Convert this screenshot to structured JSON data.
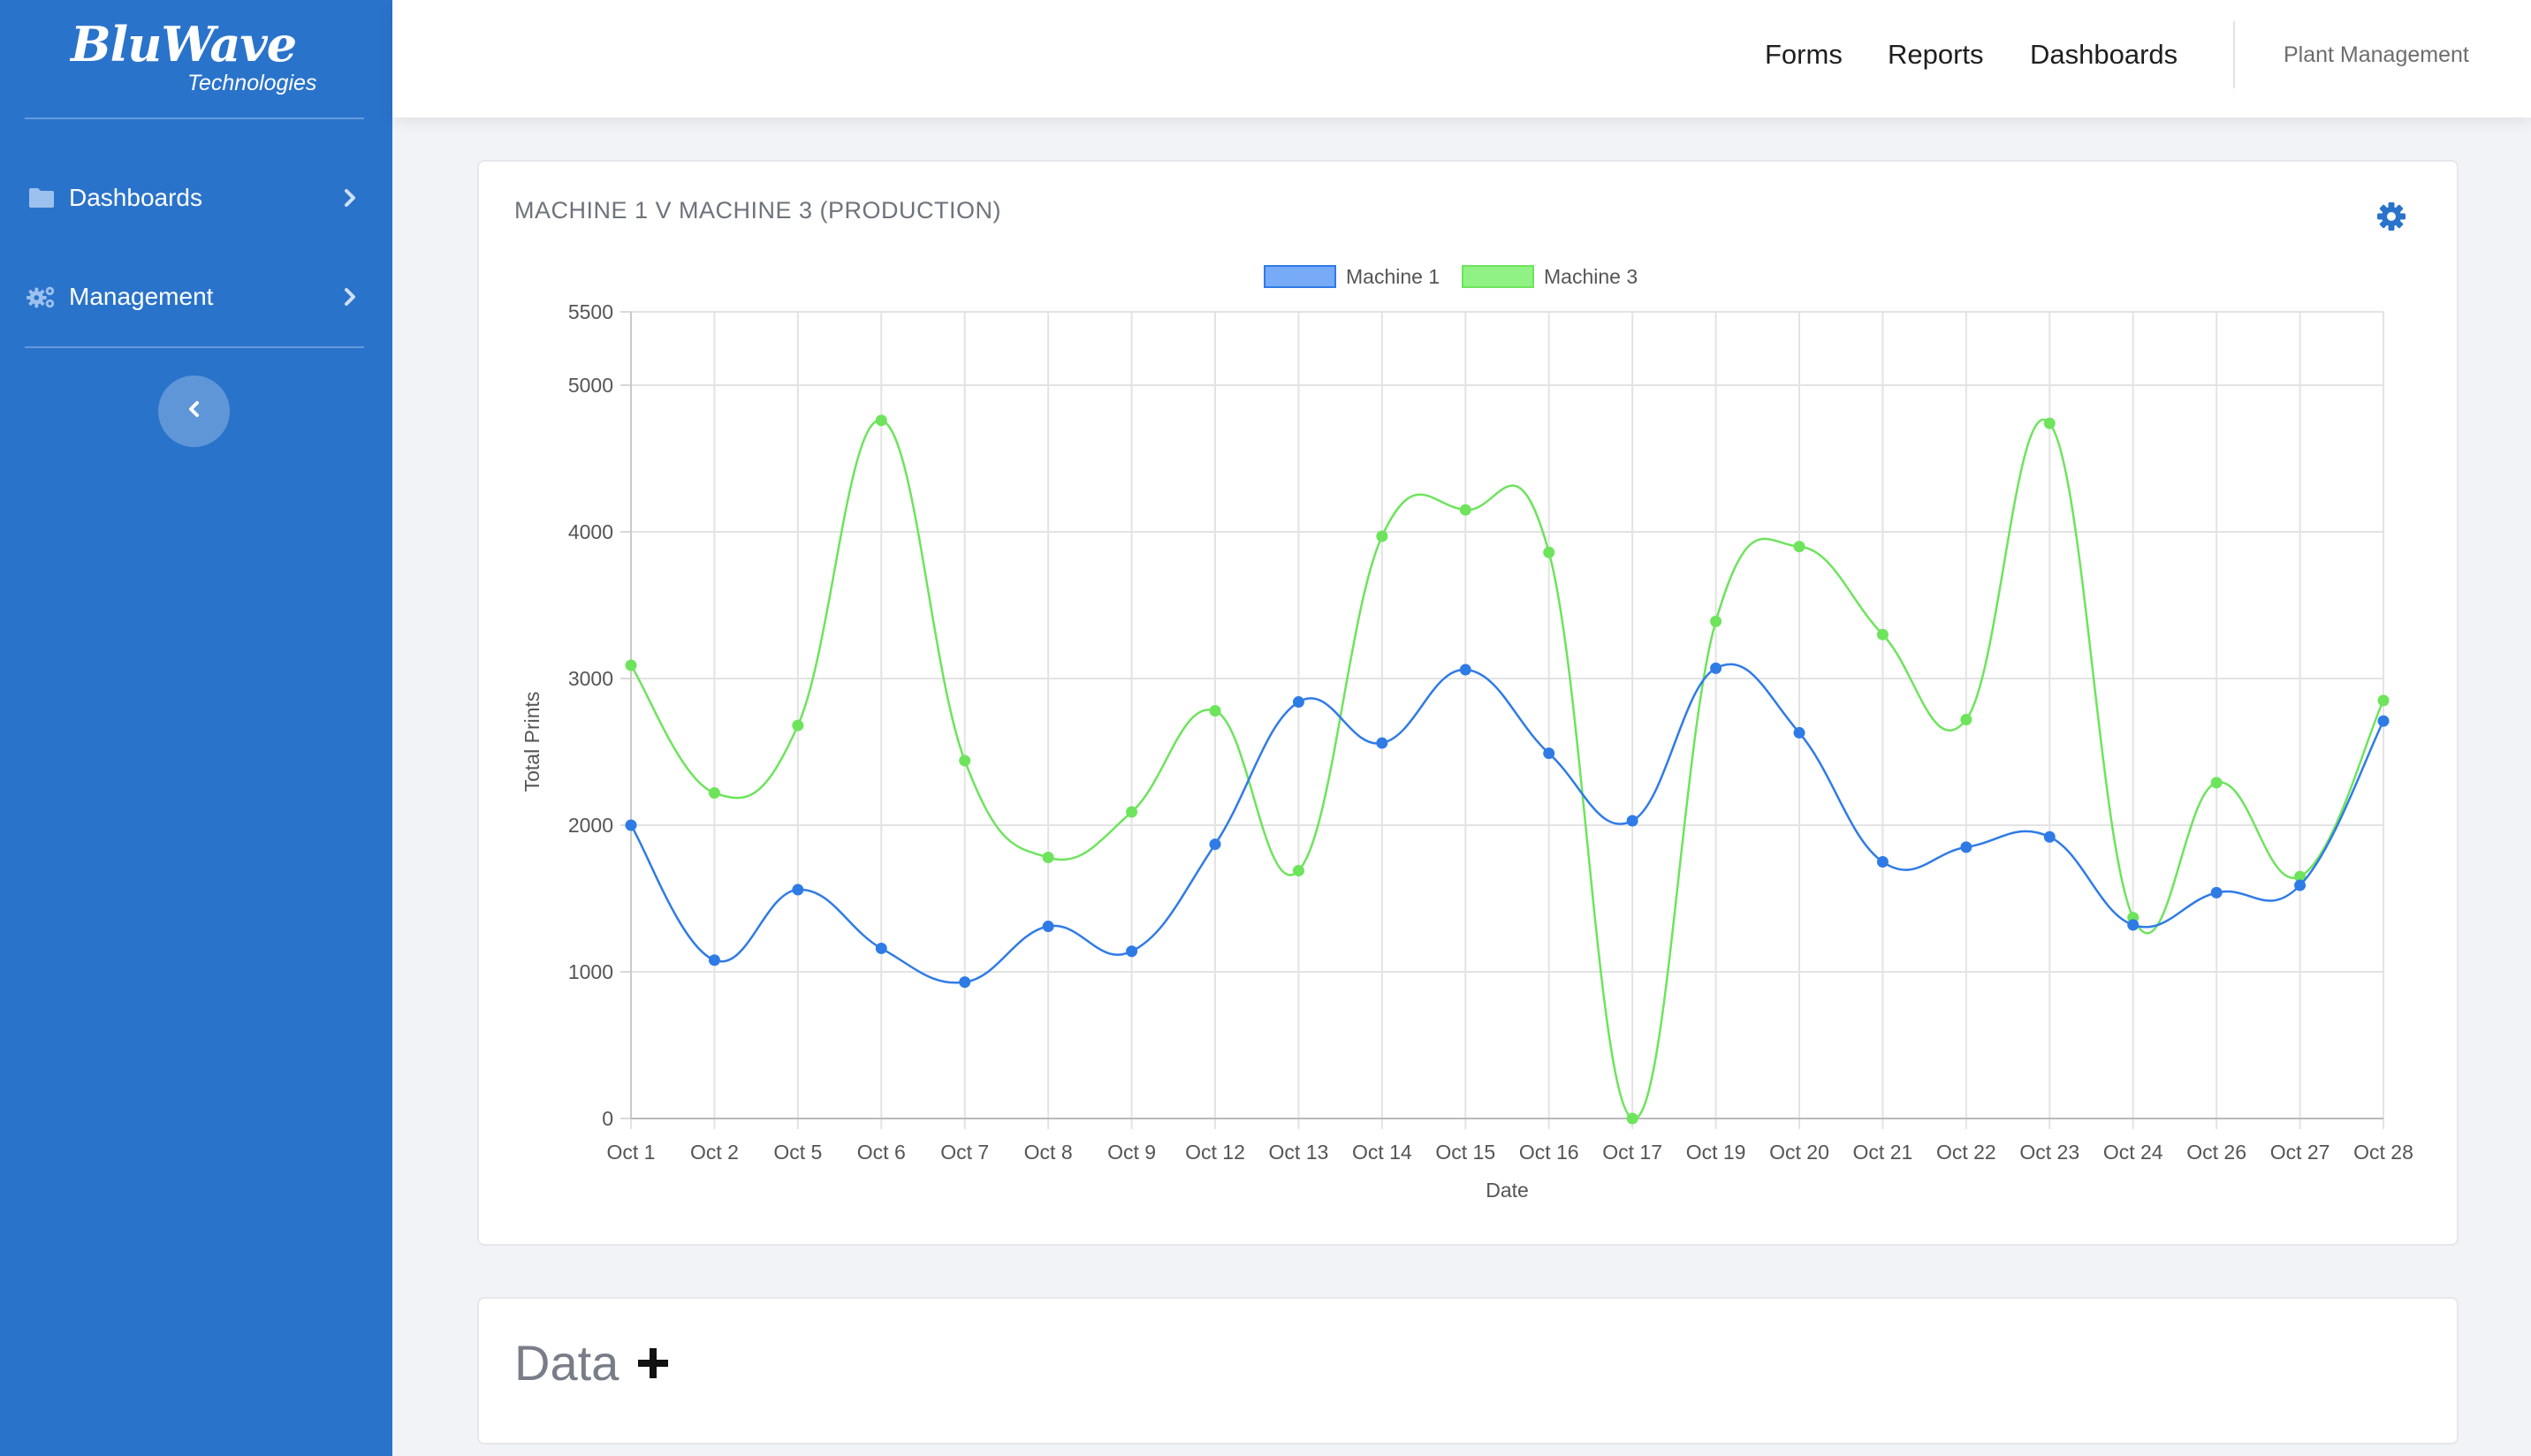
{
  "sidebar": {
    "logo": {
      "main": "BluWave",
      "sub": "Technologies"
    },
    "items": [
      {
        "label": "Dashboards",
        "icon": "folder-icon"
      },
      {
        "label": "Management",
        "icon": "gears-icon"
      }
    ],
    "collapse_icon": "chevron-left-icon"
  },
  "topbar": {
    "links": [
      "Forms",
      "Reports",
      "Dashboards"
    ],
    "plant": "Plant Management"
  },
  "chart_card": {
    "title": "MACHINE 1 V MACHINE 3 (PRODUCTION)",
    "settings_icon": "gear-icon"
  },
  "data_card": {
    "title": "Data",
    "add_icon": "plus-icon"
  },
  "chart_data": {
    "type": "line",
    "xlabel": "Date",
    "ylabel": "Total Prints",
    "ylim": [
      0,
      5500
    ],
    "yticks": [
      0,
      1000,
      2000,
      3000,
      4000,
      5000,
      5500
    ],
    "grid": true,
    "legend": "top-center",
    "categories": [
      "Oct 1",
      "Oct 2",
      "Oct 5",
      "Oct 6",
      "Oct 7",
      "Oct 8",
      "Oct 9",
      "Oct 12",
      "Oct 13",
      "Oct 14",
      "Oct 15",
      "Oct 16",
      "Oct 17",
      "Oct 19",
      "Oct 20",
      "Oct 21",
      "Oct 22",
      "Oct 23",
      "Oct 24",
      "Oct 26",
      "Oct 27",
      "Oct 28"
    ],
    "series": [
      {
        "name": "Machine 1",
        "color": "#2f7be6",
        "fill": "#77aaf7",
        "values": [
          2000,
          1080,
          1560,
          1160,
          930,
          1310,
          1140,
          1870,
          2840,
          2560,
          3060,
          2490,
          2030,
          3070,
          2630,
          1750,
          1850,
          1920,
          1320,
          1540,
          1590,
          2710
        ]
      },
      {
        "name": "Machine 3",
        "color": "#6de45c",
        "fill": "#90f284",
        "values": [
          3090,
          2220,
          2680,
          4760,
          2440,
          1780,
          2090,
          2780,
          1690,
          3970,
          4150,
          3860,
          0,
          3390,
          3900,
          3300,
          2720,
          4740,
          1370,
          2290,
          1650,
          2850
        ]
      }
    ]
  }
}
